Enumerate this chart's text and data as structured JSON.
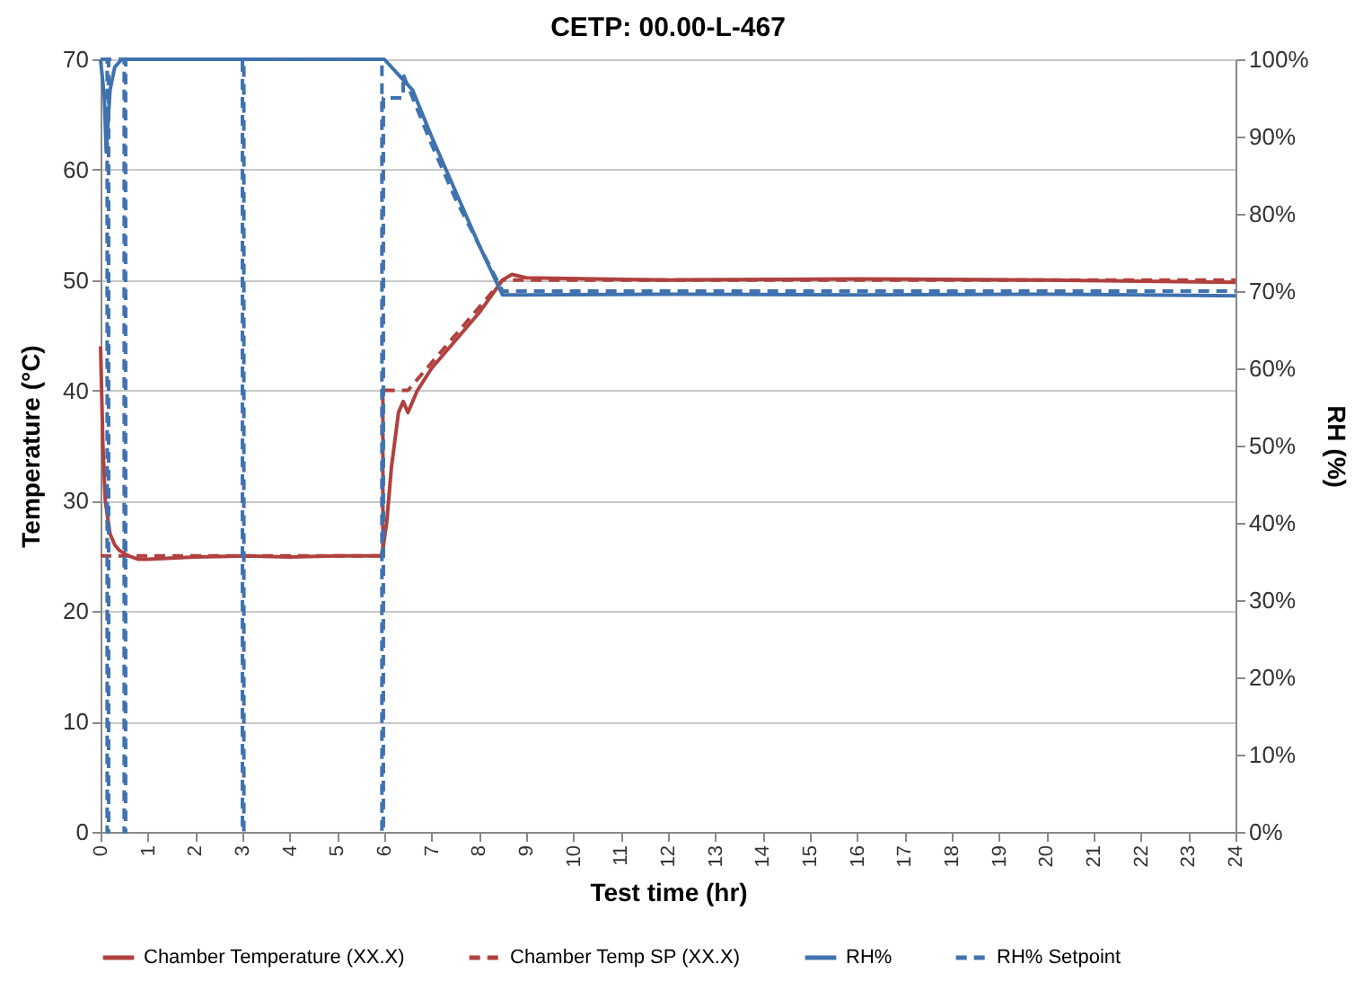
{
  "chart_data": {
    "type": "line",
    "title": "CETP: 00.00-L-467",
    "xlabel": "Test time (hr)",
    "ylabel": "Temperature (°C)",
    "y2label": "RH (%)",
    "xlim": [
      0,
      24
    ],
    "xticks": [
      0,
      1,
      2,
      3,
      4,
      5,
      6,
      7,
      8,
      9,
      10,
      11,
      12,
      13,
      14,
      15,
      16,
      17,
      18,
      19,
      20,
      21,
      22,
      23,
      24
    ],
    "ylim": [
      0,
      70
    ],
    "yticks": [
      0,
      10,
      20,
      30,
      40,
      50,
      60,
      70
    ],
    "y2lim": [
      0,
      100
    ],
    "y2ticks": [
      {
        "value": 0,
        "label": "0%"
      },
      {
        "value": 10,
        "label": "10%"
      },
      {
        "value": 20,
        "label": "20%"
      },
      {
        "value": 30,
        "label": "30%"
      },
      {
        "value": 40,
        "label": "40%"
      },
      {
        "value": 50,
        "label": "50%"
      },
      {
        "value": 60,
        "label": "60%"
      },
      {
        "value": 70,
        "label": "70%"
      },
      {
        "value": 80,
        "label": "80%"
      },
      {
        "value": 90,
        "label": "90%"
      },
      {
        "value": 100,
        "label": "100%"
      }
    ],
    "grid": "y",
    "legend": "bottom",
    "marker": "none",
    "series": [
      {
        "name": "Chamber Temperature (XX.X)",
        "color": "#b0413e",
        "line_style": "solid",
        "x": [
          0,
          0.05,
          0.1,
          0.2,
          0.3,
          0.4,
          0.6,
          0.8,
          1,
          2,
          3,
          4,
          5,
          5.95,
          6.05,
          6.15,
          6.3,
          6.4,
          6.5,
          6.7,
          7,
          7.5,
          8,
          8.5,
          8.7,
          9,
          12,
          16,
          20,
          24
        ],
        "values": [
          44,
          35,
          30,
          27,
          26,
          25.5,
          25,
          24.7,
          24.7,
          24.9,
          25,
          24.9,
          25,
          25,
          28,
          33,
          38,
          39,
          38,
          40,
          42,
          44.5,
          47,
          50,
          50.5,
          50.2,
          50,
          50.1,
          50,
          49.8
        ]
      },
      {
        "name": "Chamber Temp SP (XX.X)",
        "color": "#b0413e",
        "line_style": "dashed",
        "x": [
          0,
          5.97,
          5.97,
          6.5,
          7,
          8.5,
          24
        ],
        "values": [
          25,
          25,
          40,
          40,
          42.5,
          50,
          50
        ]
      },
      {
        "name": "RH%",
        "color": "#3f72af",
        "line_style": "solid",
        "axis": "y2",
        "x": [
          0,
          0.08,
          0.12,
          0.2,
          0.3,
          0.45,
          1,
          3,
          6,
          6.3,
          6.6,
          7,
          7.5,
          8,
          8.5,
          9,
          12,
          16,
          20,
          24
        ],
        "values": [
          100,
          95,
          88,
          96,
          99,
          100,
          100,
          100,
          100,
          98,
          96,
          90,
          83,
          76,
          69.5,
          69.5,
          69.6,
          69.5,
          69.6,
          69.4
        ]
      },
      {
        "name": "RH% Setpoint",
        "color": "#3f72af",
        "line_style": "dashed",
        "axis": "y2",
        "x": [
          0,
          0.14,
          0.14,
          0.17,
          0.17,
          0.5,
          0.5,
          0.53,
          0.53,
          3,
          3,
          3.03,
          3.03,
          5.95,
          5.95,
          5.98,
          5.98,
          6.4,
          6.4,
          7,
          7.5,
          8.5,
          24
        ],
        "values": [
          100,
          100,
          0,
          0,
          100,
          100,
          0,
          0,
          100,
          100,
          0,
          0,
          100,
          100,
          0,
          0,
          95,
          95,
          98,
          89,
          82,
          70,
          70
        ]
      }
    ]
  }
}
